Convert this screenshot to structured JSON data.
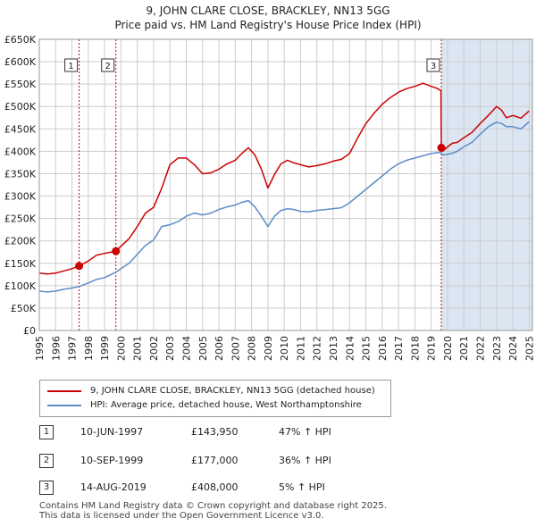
{
  "title_line1": "9, JOHN CLARE CLOSE, BRACKLEY, NN13 5GG",
  "title_line2": "Price paid vs. HM Land Registry's House Price Index (HPI)",
  "colors": {
    "property": "#cc0000",
    "hpi": "#5b8cc8",
    "shade": "#dce6f2",
    "grid": "#cccccc"
  },
  "chart_data": {
    "type": "line",
    "title": "Price paid vs. HM Land Registry's House Price Index (HPI)",
    "xlabel": "",
    "ylabel": "",
    "xlim": [
      1995,
      2025.2
    ],
    "ylim": [
      0,
      650000
    ],
    "grid": true,
    "x_ticks": [
      1995,
      1996,
      1997,
      1998,
      1999,
      2000,
      2001,
      2002,
      2003,
      2004,
      2005,
      2006,
      2007,
      2008,
      2009,
      2010,
      2011,
      2012,
      2013,
      2014,
      2015,
      2016,
      2017,
      2018,
      2019,
      2020,
      2021,
      2022,
      2023,
      2024,
      2025
    ],
    "y_ticks": [
      {
        "value": 0,
        "label": "£0"
      },
      {
        "value": 50000,
        "label": "£50K"
      },
      {
        "value": 100000,
        "label": "£100K"
      },
      {
        "value": 150000,
        "label": "£150K"
      },
      {
        "value": 200000,
        "label": "£200K"
      },
      {
        "value": 250000,
        "label": "£250K"
      },
      {
        "value": 300000,
        "label": "£300K"
      },
      {
        "value": 350000,
        "label": "£350K"
      },
      {
        "value": 400000,
        "label": "£400K"
      },
      {
        "value": 450000,
        "label": "£450K"
      },
      {
        "value": 500000,
        "label": "£500K"
      },
      {
        "value": 550000,
        "label": "£550K"
      },
      {
        "value": 600000,
        "label": "£600K"
      },
      {
        "value": 650000,
        "label": "£650K"
      }
    ],
    "shaded_ranges": [
      [
        2019.62,
        2025.2
      ]
    ],
    "series": [
      {
        "name": "9, JOHN CLARE CLOSE, BRACKLEY, NN13 5GG (detached house)",
        "x": [
          1995.0,
          1995.5,
          1996.0,
          1996.5,
          1997.0,
          1997.44,
          1998.0,
          1998.5,
          1999.0,
          1999.69,
          2000.0,
          2000.5,
          2001.0,
          2001.5,
          2002.0,
          2002.5,
          2003.0,
          2003.5,
          2004.0,
          2004.5,
          2005.0,
          2005.5,
          2006.0,
          2006.5,
          2007.0,
          2007.4,
          2007.8,
          2008.2,
          2008.6,
          2009.0,
          2009.4,
          2009.8,
          2010.2,
          2010.6,
          2011.0,
          2011.5,
          2012.0,
          2012.5,
          2013.0,
          2013.5,
          2014.0,
          2014.5,
          2015.0,
          2015.5,
          2016.0,
          2016.5,
          2017.0,
          2017.5,
          2018.0,
          2018.5,
          2019.0,
          2019.4,
          2019.6,
          2019.62,
          2019.7,
          2020.0,
          2020.3,
          2020.6,
          2021.0,
          2021.5,
          2022.0,
          2022.5,
          2023.0,
          2023.3,
          2023.6,
          2024.0,
          2024.5,
          2025.0
        ],
        "values": [
          128000,
          126000,
          128000,
          133000,
          138000,
          143950,
          155000,
          168000,
          172000,
          177000,
          188000,
          205000,
          232000,
          262000,
          275000,
          318000,
          370000,
          385000,
          385000,
          370000,
          350000,
          352000,
          360000,
          372000,
          380000,
          395000,
          408000,
          392000,
          360000,
          318000,
          348000,
          372000,
          380000,
          374000,
          370000,
          365000,
          368000,
          372000,
          378000,
          382000,
          395000,
          430000,
          462000,
          485000,
          505000,
          520000,
          532000,
          540000,
          545000,
          552000,
          545000,
          540000,
          535000,
          408000,
          400000,
          410000,
          418000,
          420000,
          430000,
          442000,
          462000,
          480000,
          500000,
          492000,
          475000,
          480000,
          474000,
          490000
        ]
      },
      {
        "name": "HPI: Average price, detached house, West Northamptonshire",
        "x": [
          1995.0,
          1995.5,
          1996.0,
          1996.5,
          1997.0,
          1997.44,
          1998.0,
          1998.5,
          1999.0,
          1999.69,
          2000.0,
          2000.5,
          2001.0,
          2001.5,
          2002.0,
          2002.5,
          2003.0,
          2003.5,
          2004.0,
          2004.5,
          2005.0,
          2005.5,
          2006.0,
          2006.5,
          2007.0,
          2007.4,
          2007.8,
          2008.2,
          2008.6,
          2009.0,
          2009.4,
          2009.8,
          2010.2,
          2010.6,
          2011.0,
          2011.5,
          2012.0,
          2012.5,
          2013.0,
          2013.5,
          2014.0,
          2014.5,
          2015.0,
          2015.5,
          2016.0,
          2016.5,
          2017.0,
          2017.5,
          2018.0,
          2018.5,
          2019.0,
          2019.4,
          2019.6,
          2019.62,
          2019.7,
          2020.0,
          2020.3,
          2020.6,
          2021.0,
          2021.5,
          2022.0,
          2022.5,
          2023.0,
          2023.3,
          2023.6,
          2024.0,
          2024.5,
          2025.0
        ],
        "values": [
          88000,
          86000,
          88000,
          92000,
          95000,
          98000,
          106000,
          114000,
          118000,
          130000,
          138000,
          150000,
          170000,
          190000,
          202000,
          232000,
          236000,
          243000,
          255000,
          262000,
          258000,
          262000,
          270000,
          276000,
          280000,
          286000,
          290000,
          276000,
          255000,
          232000,
          255000,
          268000,
          272000,
          270000,
          266000,
          265000,
          268000,
          270000,
          272000,
          274000,
          285000,
          300000,
          315000,
          330000,
          345000,
          360000,
          372000,
          380000,
          385000,
          390000,
          395000,
          397000,
          398000,
          395000,
          392000,
          393000,
          396000,
          400000,
          410000,
          420000,
          438000,
          455000,
          465000,
          462000,
          455000,
          455000,
          450000,
          466000
        ]
      }
    ],
    "sales": [
      {
        "label": "1",
        "x": 1997.44,
        "value": 143950
      },
      {
        "label": "2",
        "x": 1999.69,
        "value": 177000
      },
      {
        "label": "3",
        "x": 2019.62,
        "value": 408000
      }
    ]
  },
  "legend": {
    "property_label": "9, JOHN CLARE CLOSE, BRACKLEY, NN13 5GG (detached house)",
    "hpi_label": "HPI: Average price, detached house, West Northamptonshire"
  },
  "transactions": [
    {
      "num": "1",
      "date": "10-JUN-1997",
      "price": "£143,950",
      "hpi": "47% ↑ HPI"
    },
    {
      "num": "2",
      "date": "10-SEP-1999",
      "price": "£177,000",
      "hpi": "36% ↑ HPI"
    },
    {
      "num": "3",
      "date": "14-AUG-2019",
      "price": "£408,000",
      "hpi": "5% ↑ HPI"
    }
  ],
  "footer": {
    "line1": "Contains HM Land Registry data © Crown copyright and database right 2025.",
    "line2": "This data is licensed under the Open Government Licence v3.0."
  }
}
